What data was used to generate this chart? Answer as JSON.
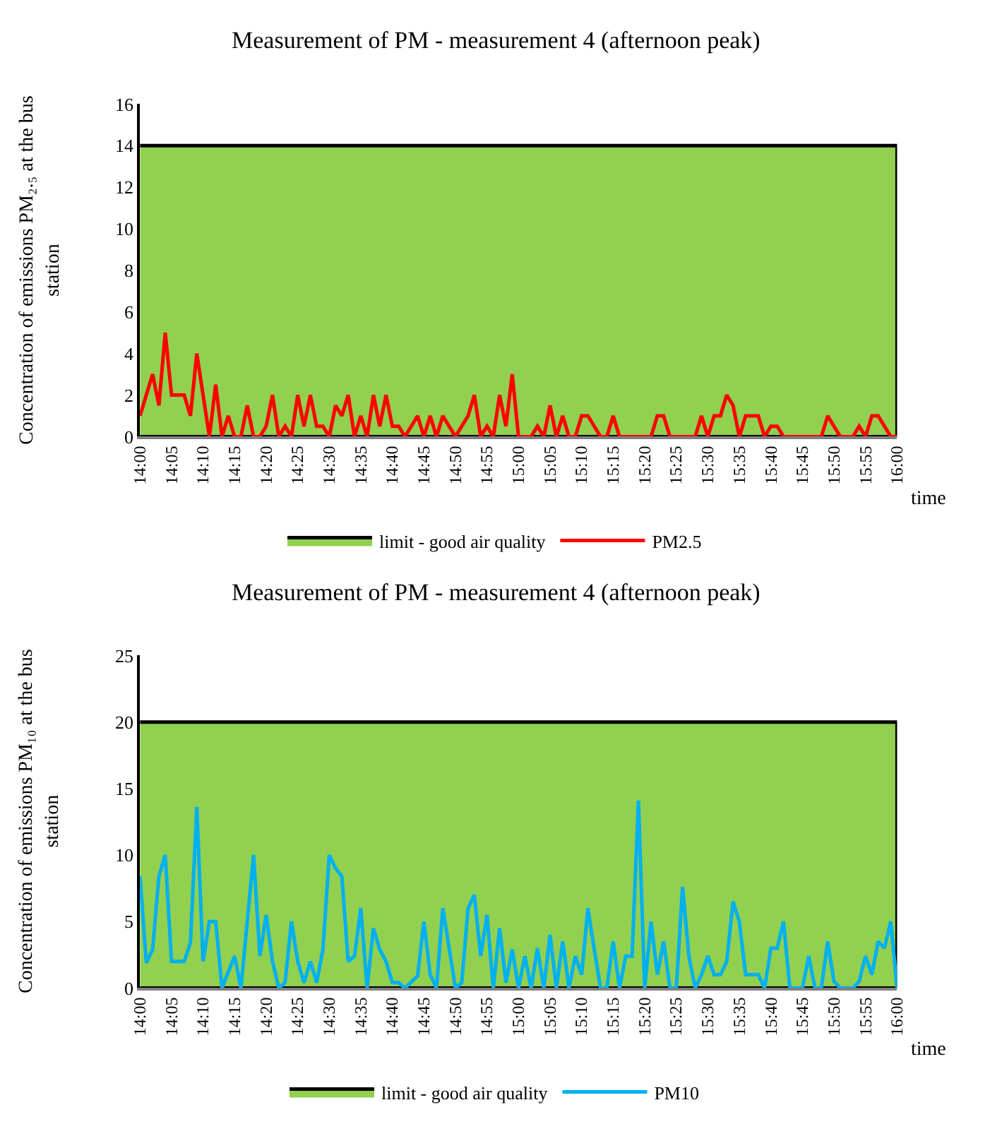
{
  "chart_data": [
    {
      "type": "line",
      "title": "Measurement of PM - measurement 4 (afternoon peak)",
      "xlabel": "time",
      "ylabel": "Concentration of emissions PM₂.₅ at the bus station",
      "xlim": [
        14,
        16
      ],
      "ylim": [
        0,
        16
      ],
      "yticks": [
        0,
        2,
        4,
        6,
        8,
        10,
        12,
        14,
        16
      ],
      "xticks": [
        {
          "value": 14,
          "label": "14:00"
        },
        {
          "value": 14.0833,
          "label": "14:05"
        },
        {
          "value": 14.1667,
          "label": "14:10"
        },
        {
          "value": 14.25,
          "label": "14:15"
        },
        {
          "value": 14.3333,
          "label": "14:20"
        },
        {
          "value": 14.4167,
          "label": "14:25"
        },
        {
          "value": 14.5,
          "label": "14:30"
        },
        {
          "value": 14.5833,
          "label": "14:35"
        },
        {
          "value": 14.6667,
          "label": "14:40"
        },
        {
          "value": 14.75,
          "label": "14:45"
        },
        {
          "value": 14.8333,
          "label": "14:50"
        },
        {
          "value": 14.9167,
          "label": "14:55"
        },
        {
          "value": 15,
          "label": "15:00"
        },
        {
          "value": 15.0833,
          "label": "15:05"
        },
        {
          "value": 15.1667,
          "label": "15:10"
        },
        {
          "value": 15.25,
          "label": "15:15"
        },
        {
          "value": 15.3333,
          "label": "15:20"
        },
        {
          "value": 15.4167,
          "label": "15:25"
        },
        {
          "value": 15.5,
          "label": "15:30"
        },
        {
          "value": 15.5833,
          "label": "15:35"
        },
        {
          "value": 15.6667,
          "label": "15:40"
        },
        {
          "value": 15.75,
          "label": "15:45"
        },
        {
          "value": 15.8333,
          "label": "15:50"
        },
        {
          "value": 15.9167,
          "label": "15:55"
        },
        {
          "value": 16,
          "label": "16:00"
        }
      ],
      "legend": "bottom",
      "series": [
        {
          "name": "limit - good air quality",
          "type": "area",
          "color": "#92d050",
          "x": [
            14,
            16
          ],
          "values": [
            14,
            14
          ]
        },
        {
          "name": "PM2.5",
          "color": "#ff0000",
          "x": [
            14,
            14.0333,
            14.05,
            14.0667,
            14.0833,
            14.1167,
            14.1333,
            14.15,
            14.1833,
            14.2,
            14.2167,
            14.2333,
            14.25,
            14.2667,
            14.2833,
            14.3,
            14.3167,
            14.3333,
            14.35,
            14.3667,
            14.3833,
            14.4,
            14.4167,
            14.4333,
            14.45,
            14.4667,
            14.4833,
            14.5,
            14.5167,
            14.5333,
            14.55,
            14.5667,
            14.5833,
            14.6,
            14.6167,
            14.6333,
            14.65,
            14.6667,
            14.6833,
            14.7,
            14.7167,
            14.7333,
            14.75,
            14.7667,
            14.7833,
            14.8,
            14.8167,
            14.8333,
            14.85,
            14.8667,
            14.8833,
            14.9,
            14.9167,
            14.9333,
            14.95,
            14.9667,
            14.9833,
            15,
            15.0333,
            15.05,
            15.0667,
            15.0833,
            15.1,
            15.1167,
            15.1333,
            15.15,
            15.1667,
            15.1833,
            15.2,
            15.2167,
            15.2333,
            15.25,
            15.2667,
            15.35,
            15.3667,
            15.3833,
            15.4,
            15.4667,
            15.4833,
            15.5,
            15.5167,
            15.5333,
            15.55,
            15.5667,
            15.5833,
            15.6,
            15.6167,
            15.6333,
            15.65,
            15.6667,
            15.6833,
            15.7,
            15.8,
            15.8167,
            15.8333,
            15.85,
            15.8833,
            15.9,
            15.9167,
            15.9333,
            15.95,
            15.9667,
            15.9833,
            16
          ],
          "values": [
            1,
            3,
            1.5,
            5,
            2,
            2,
            1,
            4,
            0,
            2.5,
            0,
            1,
            0,
            0,
            1.5,
            0,
            0,
            0.5,
            2,
            0,
            0.5,
            0,
            2,
            0.5,
            2,
            0.5,
            0.5,
            0,
            1.5,
            1,
            2,
            0,
            1,
            0,
            2,
            0.5,
            2,
            0.5,
            0.5,
            0,
            0.5,
            1,
            0,
            1,
            0,
            1,
            0.5,
            0,
            0.5,
            1,
            2,
            0,
            0.5,
            0,
            2,
            0.5,
            3,
            0,
            0,
            0.5,
            0,
            1.5,
            0,
            1,
            0,
            0,
            1,
            1,
            0.5,
            0,
            0,
            1,
            0,
            0,
            1,
            1,
            0,
            0,
            1,
            0,
            1,
            1,
            2,
            1.5,
            0,
            1,
            1,
            1,
            0,
            0.5,
            0.5,
            0,
            0,
            1,
            0.5,
            0,
            0,
            0.5,
            0,
            1,
            1,
            0.5,
            0,
            0
          ]
        }
      ]
    },
    {
      "type": "line",
      "title": "Measurement of PM - measurement 4 (afternoon peak)",
      "xlabel": "time",
      "ylabel": "Concentration of emissions PM₁₀ at the bus station",
      "xlim": [
        14,
        16
      ],
      "ylim": [
        0,
        25
      ],
      "yticks": [
        0,
        5,
        10,
        15,
        20,
        25
      ],
      "xticks": [
        {
          "value": 14,
          "label": "14:00"
        },
        {
          "value": 14.0833,
          "label": "14:05"
        },
        {
          "value": 14.1667,
          "label": "14:10"
        },
        {
          "value": 14.25,
          "label": "14:15"
        },
        {
          "value": 14.3333,
          "label": "14:20"
        },
        {
          "value": 14.4167,
          "label": "14:25"
        },
        {
          "value": 14.5,
          "label": "14:30"
        },
        {
          "value": 14.5833,
          "label": "14:35"
        },
        {
          "value": 14.6667,
          "label": "14:40"
        },
        {
          "value": 14.75,
          "label": "14:45"
        },
        {
          "value": 14.8333,
          "label": "14:50"
        },
        {
          "value": 14.9167,
          "label": "14:55"
        },
        {
          "value": 15,
          "label": "15:00"
        },
        {
          "value": 15.0833,
          "label": "15:05"
        },
        {
          "value": 15.1667,
          "label": "15:10"
        },
        {
          "value": 15.25,
          "label": "15:15"
        },
        {
          "value": 15.3333,
          "label": "15:20"
        },
        {
          "value": 15.4167,
          "label": "15:25"
        },
        {
          "value": 15.5,
          "label": "15:30"
        },
        {
          "value": 15.5833,
          "label": "15:35"
        },
        {
          "value": 15.6667,
          "label": "15:40"
        },
        {
          "value": 15.75,
          "label": "15:45"
        },
        {
          "value": 15.8333,
          "label": "15:50"
        },
        {
          "value": 15.9167,
          "label": "15:55"
        },
        {
          "value": 16,
          "label": "16:00"
        }
      ],
      "legend": "bottom",
      "series": [
        {
          "name": "limit - good air quality",
          "type": "area",
          "color": "#92d050",
          "x": [
            14,
            16
          ],
          "values": [
            20,
            20
          ]
        },
        {
          "name": "PM10",
          "color": "#00b0f0",
          "x": [
            14,
            14.0167,
            14.0333,
            14.05,
            14.0667,
            14.0833,
            14.1167,
            14.1333,
            14.15,
            14.1667,
            14.1833,
            14.2,
            14.2167,
            14.2333,
            14.25,
            14.2667,
            14.3,
            14.3167,
            14.3333,
            14.35,
            14.3667,
            14.3833,
            14.4,
            14.4167,
            14.4333,
            14.45,
            14.4667,
            14.4833,
            14.5,
            14.5167,
            14.5333,
            14.55,
            14.5667,
            14.5833,
            14.6,
            14.6167,
            14.6333,
            14.65,
            14.6667,
            14.6833,
            14.7,
            14.7333,
            14.75,
            14.7667,
            14.7833,
            14.8,
            14.8333,
            14.85,
            14.8667,
            14.8833,
            14.9,
            14.9167,
            14.9333,
            14.95,
            14.9667,
            14.9833,
            15,
            15.0167,
            15.0333,
            15.05,
            15.0667,
            15.0833,
            15.1,
            15.1167,
            15.1333,
            15.15,
            15.1667,
            15.1833,
            15.2,
            15.2167,
            15.2333,
            15.25,
            15.2667,
            15.2833,
            15.3,
            15.3167,
            15.3333,
            15.35,
            15.3667,
            15.3833,
            15.4,
            15.4167,
            15.4333,
            15.45,
            15.4667,
            15.4833,
            15.5,
            15.5167,
            15.5333,
            15.55,
            15.5667,
            15.5833,
            15.6,
            15.6333,
            15.65,
            15.6667,
            15.6833,
            15.7,
            15.7167,
            15.75,
            15.7667,
            15.7833,
            15.8,
            15.8167,
            15.8333,
            15.85,
            15.8833,
            15.9,
            15.9167,
            15.9333,
            15.95,
            15.9667,
            15.9833,
            16
          ],
          "values": [
            8.4,
            1.9,
            2.9,
            8.4,
            10,
            2,
            2,
            3.4,
            13.6,
            2,
            5,
            5,
            0,
            1.2,
            2.4,
            0,
            10,
            2.4,
            5.5,
            2,
            0,
            0.4,
            5,
            2,
            0.4,
            2,
            0.4,
            2.9,
            10,
            9,
            8.4,
            2,
            2.4,
            6,
            0,
            4.5,
            2.9,
            2,
            0.4,
            0.4,
            0,
            0.9,
            5,
            1,
            0,
            6,
            0,
            0.4,
            6,
            7,
            2.4,
            5.5,
            0,
            4.5,
            0.4,
            2.9,
            0,
            2.4,
            0,
            3,
            0,
            4,
            0,
            3.5,
            0,
            2.4,
            1,
            6,
            2.9,
            0,
            0,
            3.5,
            0,
            2.4,
            2.4,
            14.1,
            0,
            5,
            1,
            3.5,
            0,
            0,
            7.6,
            2.4,
            0,
            1,
            2.4,
            1,
            1,
            2,
            6.5,
            5,
            1,
            1,
            0,
            3,
            3,
            5,
            0,
            0,
            2.4,
            0,
            0,
            3.5,
            0.5,
            0,
            0,
            0.5,
            2.4,
            1,
            3.5,
            3,
            5,
            0
          ]
        }
      ]
    }
  ]
}
